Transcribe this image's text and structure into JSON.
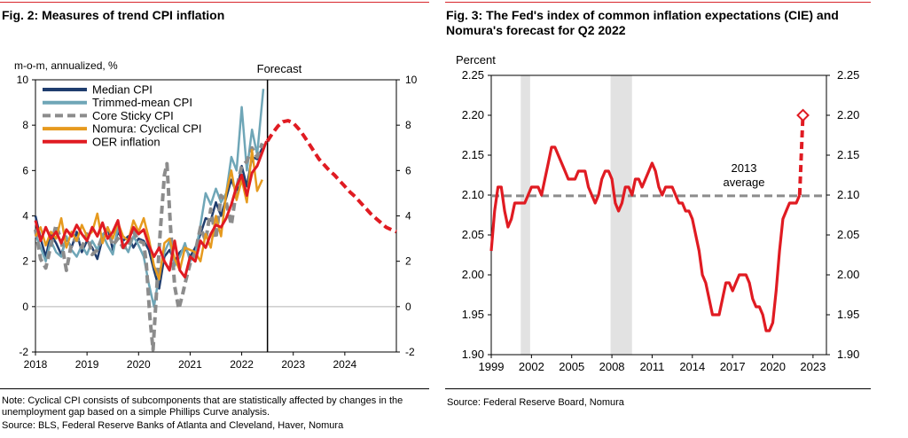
{
  "fig2": {
    "title": "Fig. 2: Measures of trend CPI inflation",
    "note": "Note: Cyclical CPI consists of subcomponents that are statistically affected by changes in the unemployment gap based on a simple Phillips Curve analysis.",
    "source": "Source: BLS, Federal Reserve Banks of Atlanta and Cleveland, Haver, Nomura"
  },
  "fig3": {
    "title": "Fig. 3: The Fed's index of common inflation expectations (CIE) and Nomura's forecast for Q2 2022",
    "source": "Source: Federal Reserve Board, Nomura"
  },
  "colors": {
    "median": "#1f3d6e",
    "trimmed": "#6fa6b7",
    "sticky": "#8c8c8c",
    "cyclical": "#e69a1e",
    "oer": "#e01b22",
    "grid": "#b3b3b3",
    "shade": "#e2e2e2",
    "rule": "#d7262b"
  },
  "chart_data": [
    {
      "type": "line",
      "title": "Fig. 2: Measures of trend CPI inflation",
      "ylabel": "m-o-m, annualized, %",
      "xlim": [
        2018,
        2025
      ],
      "ylim": [
        -2,
        10
      ],
      "x_ticks": [
        "2018",
        "2019",
        "2020",
        "2021",
        "2022",
        "2023",
        "2024"
      ],
      "y_ticks_left": [
        "-2",
        "0",
        "2",
        "4",
        "6",
        "8",
        "10"
      ],
      "y_ticks_right": [
        "-2",
        "0",
        "2",
        "4",
        "6",
        "8",
        "10"
      ],
      "y_tick_values": [
        -2,
        0,
        2,
        4,
        6,
        8,
        10
      ],
      "vline": {
        "x": 2022.5,
        "label": "Forecast"
      },
      "legend_position": "top-left",
      "series": [
        {
          "name": "Median CPI",
          "color_key": "median",
          "dash": false,
          "x": [
            2018.0,
            2018.1,
            2018.2,
            2018.3,
            2018.4,
            2018.5,
            2018.6,
            2018.7,
            2018.8,
            2018.9,
            2019.0,
            2019.1,
            2019.2,
            2019.3,
            2019.4,
            2019.5,
            2019.6,
            2019.7,
            2019.8,
            2019.9,
            2020.0,
            2020.1,
            2020.2,
            2020.3,
            2020.4,
            2020.5,
            2020.6,
            2020.7,
            2020.8,
            2020.9,
            2021.0,
            2021.1,
            2021.2,
            2021.3,
            2021.4,
            2021.5,
            2021.6,
            2021.7,
            2021.8,
            2021.9,
            2022.0,
            2022.1,
            2022.2,
            2022.3,
            2022.4
          ],
          "y": [
            4.0,
            3.0,
            2.2,
            3.2,
            2.8,
            2.3,
            3.0,
            2.6,
            3.3,
            2.4,
            2.9,
            2.6,
            2.1,
            3.0,
            3.5,
            2.5,
            3.3,
            2.9,
            3.1,
            2.6,
            3.0,
            2.9,
            2.5,
            1.6,
            0.8,
            2.2,
            2.5,
            2.0,
            2.4,
            2.6,
            2.2,
            2.6,
            3.2,
            3.9,
            3.8,
            4.6,
            4.0,
            4.8,
            5.6,
            5.0,
            6.2,
            5.3,
            6.6,
            6.5,
            7.0
          ]
        },
        {
          "name": "Trimmed-mean CPI",
          "color_key": "trimmed",
          "dash": false,
          "x": [
            2018.0,
            2018.1,
            2018.2,
            2018.3,
            2018.4,
            2018.5,
            2018.6,
            2018.7,
            2018.8,
            2018.9,
            2019.0,
            2019.1,
            2019.2,
            2019.3,
            2019.4,
            2019.5,
            2019.6,
            2019.7,
            2019.8,
            2019.9,
            2020.0,
            2020.1,
            2020.2,
            2020.3,
            2020.4,
            2020.5,
            2020.6,
            2020.7,
            2020.8,
            2020.9,
            2021.0,
            2021.1,
            2021.2,
            2021.3,
            2021.4,
            2021.5,
            2021.6,
            2021.7,
            2021.8,
            2021.9,
            2022.0,
            2022.1,
            2022.2,
            2022.3,
            2022.42
          ],
          "y": [
            3.2,
            2.6,
            2.0,
            2.9,
            2.4,
            2.2,
            3.1,
            2.5,
            2.2,
            2.7,
            2.3,
            2.9,
            2.5,
            3.2,
            2.7,
            2.3,
            3.5,
            2.8,
            2.4,
            3.1,
            2.7,
            2.2,
            1.0,
            0.0,
            1.4,
            2.4,
            2.9,
            1.8,
            2.2,
            2.8,
            2.0,
            2.3,
            3.6,
            5.0,
            4.5,
            5.2,
            4.6,
            5.0,
            6.6,
            6.0,
            8.8,
            6.0,
            7.8,
            6.7,
            9.6
          ]
        },
        {
          "name": "Core Sticky CPI",
          "color_key": "sticky",
          "dash": true,
          "x": [
            2018.0,
            2018.1,
            2018.2,
            2018.3,
            2018.4,
            2018.5,
            2018.6,
            2018.7,
            2018.8,
            2018.9,
            2019.0,
            2019.1,
            2019.2,
            2019.3,
            2019.4,
            2019.5,
            2019.6,
            2019.7,
            2019.8,
            2019.9,
            2020.0,
            2020.1,
            2020.15,
            2020.22,
            2020.28,
            2020.35,
            2020.42,
            2020.5,
            2020.55,
            2020.62,
            2020.7,
            2020.78,
            2020.85,
            2020.92,
            2021.0,
            2021.1,
            2021.2,
            2021.3,
            2021.4,
            2021.5,
            2021.6,
            2021.7,
            2021.8,
            2021.9,
            2022.0,
            2022.1,
            2022.2,
            2022.3,
            2022.4
          ],
          "y": [
            3.4,
            2.1,
            1.7,
            2.7,
            3.6,
            2.9,
            1.6,
            2.8,
            3.0,
            2.6,
            3.2,
            2.3,
            2.5,
            3.1,
            3.4,
            2.7,
            3.0,
            2.6,
            2.6,
            3.3,
            2.9,
            2.8,
            1.9,
            -0.5,
            -1.9,
            0.7,
            3.3,
            5.8,
            6.3,
            3.5,
            0.9,
            -0.1,
            0.5,
            1.2,
            1.9,
            2.4,
            3.5,
            2.9,
            4.3,
            3.0,
            4.9,
            4.6,
            3.6,
            5.2,
            6.2,
            6.4,
            7.0,
            6.6,
            7.2
          ]
        },
        {
          "name": "Nomura: Cyclical CPI",
          "color_key": "cyclical",
          "dash": false,
          "x": [
            2018.0,
            2018.1,
            2018.2,
            2018.3,
            2018.4,
            2018.5,
            2018.6,
            2018.7,
            2018.8,
            2018.9,
            2019.0,
            2019.1,
            2019.2,
            2019.3,
            2019.4,
            2019.5,
            2019.6,
            2019.7,
            2019.8,
            2019.9,
            2020.0,
            2020.1,
            2020.2,
            2020.3,
            2020.4,
            2020.5,
            2020.6,
            2020.7,
            2020.8,
            2020.9,
            2021.0,
            2021.1,
            2021.2,
            2021.3,
            2021.4,
            2021.5,
            2021.6,
            2021.7,
            2021.8,
            2021.9,
            2022.0,
            2022.1,
            2022.2,
            2022.3,
            2022.4
          ],
          "y": [
            3.1,
            3.5,
            2.7,
            3.3,
            3.0,
            3.9,
            2.6,
            3.3,
            2.9,
            3.6,
            3.1,
            3.3,
            4.1,
            2.8,
            3.5,
            3.0,
            3.7,
            3.1,
            2.9,
            3.8,
            3.3,
            3.9,
            3.0,
            1.8,
            1.2,
            2.8,
            3.0,
            2.1,
            1.6,
            2.6,
            2.5,
            2.4,
            2.0,
            3.2,
            2.6,
            4.0,
            3.1,
            5.0,
            6.0,
            4.7,
            5.6,
            4.6,
            6.9,
            5.1,
            5.6
          ]
        },
        {
          "name": "OER inflation",
          "color_key": "oer",
          "dash": false,
          "x": [
            2018.0,
            2018.1,
            2018.2,
            2018.3,
            2018.4,
            2018.5,
            2018.6,
            2018.7,
            2018.8,
            2018.9,
            2019.0,
            2019.1,
            2019.2,
            2019.3,
            2019.4,
            2019.5,
            2019.6,
            2019.7,
            2019.8,
            2019.9,
            2020.0,
            2020.1,
            2020.2,
            2020.3,
            2020.4,
            2020.5,
            2020.6,
            2020.7,
            2020.8,
            2020.9,
            2021.0,
            2021.1,
            2021.2,
            2021.3,
            2021.4,
            2021.5,
            2021.6,
            2021.7,
            2021.8,
            2021.9,
            2022.0,
            2022.1,
            2022.2,
            2022.3,
            2022.4,
            2022.48
          ],
          "y": [
            3.8,
            2.9,
            3.5,
            3.0,
            3.3,
            2.8,
            3.4,
            3.1,
            3.6,
            3.2,
            2.9,
            3.5,
            3.1,
            3.7,
            3.0,
            3.3,
            3.8,
            2.6,
            2.9,
            3.5,
            3.2,
            3.4,
            2.7,
            2.2,
            2.6,
            2.0,
            1.6,
            2.9,
            1.6,
            1.3,
            2.2,
            2.0,
            2.9,
            2.6,
            3.2,
            3.6,
            3.5,
            3.9,
            4.5,
            5.3,
            5.8,
            4.9,
            5.9,
            6.2,
            6.8,
            7.3
          ]
        },
        {
          "name": "OER forecast",
          "color_key": "oer",
          "dash": true,
          "legend": false,
          "x": [
            2022.5,
            2022.6,
            2022.7,
            2022.8,
            2022.9,
            2023.0,
            2023.1,
            2023.2,
            2023.3,
            2023.4,
            2023.5,
            2023.6,
            2023.7,
            2023.8,
            2023.9,
            2024.0,
            2024.1,
            2024.2,
            2024.3,
            2024.4,
            2024.5,
            2024.6,
            2024.7,
            2024.8,
            2024.9,
            2025.0
          ],
          "y": [
            7.3,
            7.65,
            7.95,
            8.15,
            8.2,
            8.1,
            7.85,
            7.55,
            7.2,
            6.85,
            6.5,
            6.25,
            6.0,
            5.8,
            5.55,
            5.3,
            5.05,
            4.85,
            4.6,
            4.35,
            4.1,
            3.9,
            3.7,
            3.5,
            3.4,
            3.3
          ]
        }
      ]
    },
    {
      "type": "line",
      "title": "Fig. 3: The Fed's index of common inflation expectations (CIE) and Nomura's forecast for Q2 2022",
      "ylabel": "Percent",
      "xlim": [
        1999,
        2024
      ],
      "ylim": [
        1.9,
        2.25
      ],
      "x_ticks": [
        "1999",
        "2002",
        "2005",
        "2008",
        "2011",
        "2014",
        "2017",
        "2020",
        "2023"
      ],
      "y_ticks_left": [
        "1.90",
        "1.95",
        "2.00",
        "2.05",
        "2.10",
        "2.15",
        "2.20",
        "2.25"
      ],
      "y_ticks_right": [
        "1.90",
        "1.95",
        "2.00",
        "2.05",
        "2.10",
        "2.15",
        "2.20",
        "2.25"
      ],
      "y_tick_values": [
        1.9,
        1.95,
        2.0,
        2.05,
        2.1,
        2.15,
        2.2,
        2.25
      ],
      "recessions": [
        [
          2001.2,
          2001.9
        ],
        [
          2007.9,
          2009.5
        ]
      ],
      "reference_line": {
        "name": "2013 average",
        "label_lines": [
          "2013",
          "average"
        ],
        "value": 2.099
      },
      "series": [
        {
          "name": "CIE",
          "color_key": "oer",
          "dash": false,
          "x": [
            1999.0,
            1999.25,
            1999.5,
            1999.75,
            2000.0,
            2000.25,
            2000.5,
            2000.75,
            2001.0,
            2001.25,
            2001.5,
            2001.75,
            2002.0,
            2002.25,
            2002.5,
            2002.75,
            2003.0,
            2003.25,
            2003.5,
            2003.75,
            2004.0,
            2004.25,
            2004.5,
            2004.75,
            2005.0,
            2005.25,
            2005.5,
            2005.75,
            2006.0,
            2006.25,
            2006.5,
            2006.75,
            2007.0,
            2007.25,
            2007.5,
            2007.75,
            2008.0,
            2008.25,
            2008.5,
            2008.75,
            2009.0,
            2009.25,
            2009.5,
            2009.75,
            2010.0,
            2010.25,
            2010.5,
            2010.75,
            2011.0,
            2011.25,
            2011.5,
            2011.75,
            2012.0,
            2012.25,
            2012.5,
            2012.75,
            2013.0,
            2013.25,
            2013.5,
            2013.75,
            2014.0,
            2014.25,
            2014.5,
            2014.75,
            2015.0,
            2015.25,
            2015.5,
            2015.75,
            2016.0,
            2016.25,
            2016.5,
            2016.75,
            2017.0,
            2017.25,
            2017.5,
            2017.75,
            2018.0,
            2018.25,
            2018.5,
            2018.75,
            2019.0,
            2019.25,
            2019.5,
            2019.75,
            2020.0,
            2020.25,
            2020.5,
            2020.75,
            2021.0,
            2021.25,
            2021.5,
            2021.75,
            2022.0
          ],
          "y": [
            2.03,
            2.08,
            2.11,
            2.11,
            2.08,
            2.06,
            2.07,
            2.09,
            2.09,
            2.09,
            2.09,
            2.1,
            2.11,
            2.11,
            2.11,
            2.1,
            2.12,
            2.14,
            2.16,
            2.16,
            2.15,
            2.14,
            2.13,
            2.12,
            2.12,
            2.12,
            2.13,
            2.13,
            2.13,
            2.11,
            2.1,
            2.09,
            2.1,
            2.12,
            2.13,
            2.13,
            2.12,
            2.09,
            2.08,
            2.09,
            2.11,
            2.11,
            2.1,
            2.12,
            2.12,
            2.11,
            2.12,
            2.13,
            2.14,
            2.13,
            2.11,
            2.1,
            2.11,
            2.11,
            2.11,
            2.1,
            2.09,
            2.09,
            2.08,
            2.08,
            2.07,
            2.05,
            2.03,
            2.0,
            1.99,
            1.97,
            1.95,
            1.95,
            1.95,
            1.97,
            1.99,
            1.99,
            1.98,
            1.99,
            2.0,
            2.0,
            2.0,
            1.99,
            1.97,
            1.96,
            1.96,
            1.95,
            1.93,
            1.93,
            1.94,
            1.98,
            2.03,
            2.07,
            2.08,
            2.09,
            2.09,
            2.09,
            2.1
          ]
        },
        {
          "name": "Nomura forecast Q2 2022",
          "color_key": "oer",
          "dash": true,
          "x": [
            2022.0,
            2022.25
          ],
          "y": [
            2.1,
            2.2
          ]
        }
      ]
    }
  ]
}
